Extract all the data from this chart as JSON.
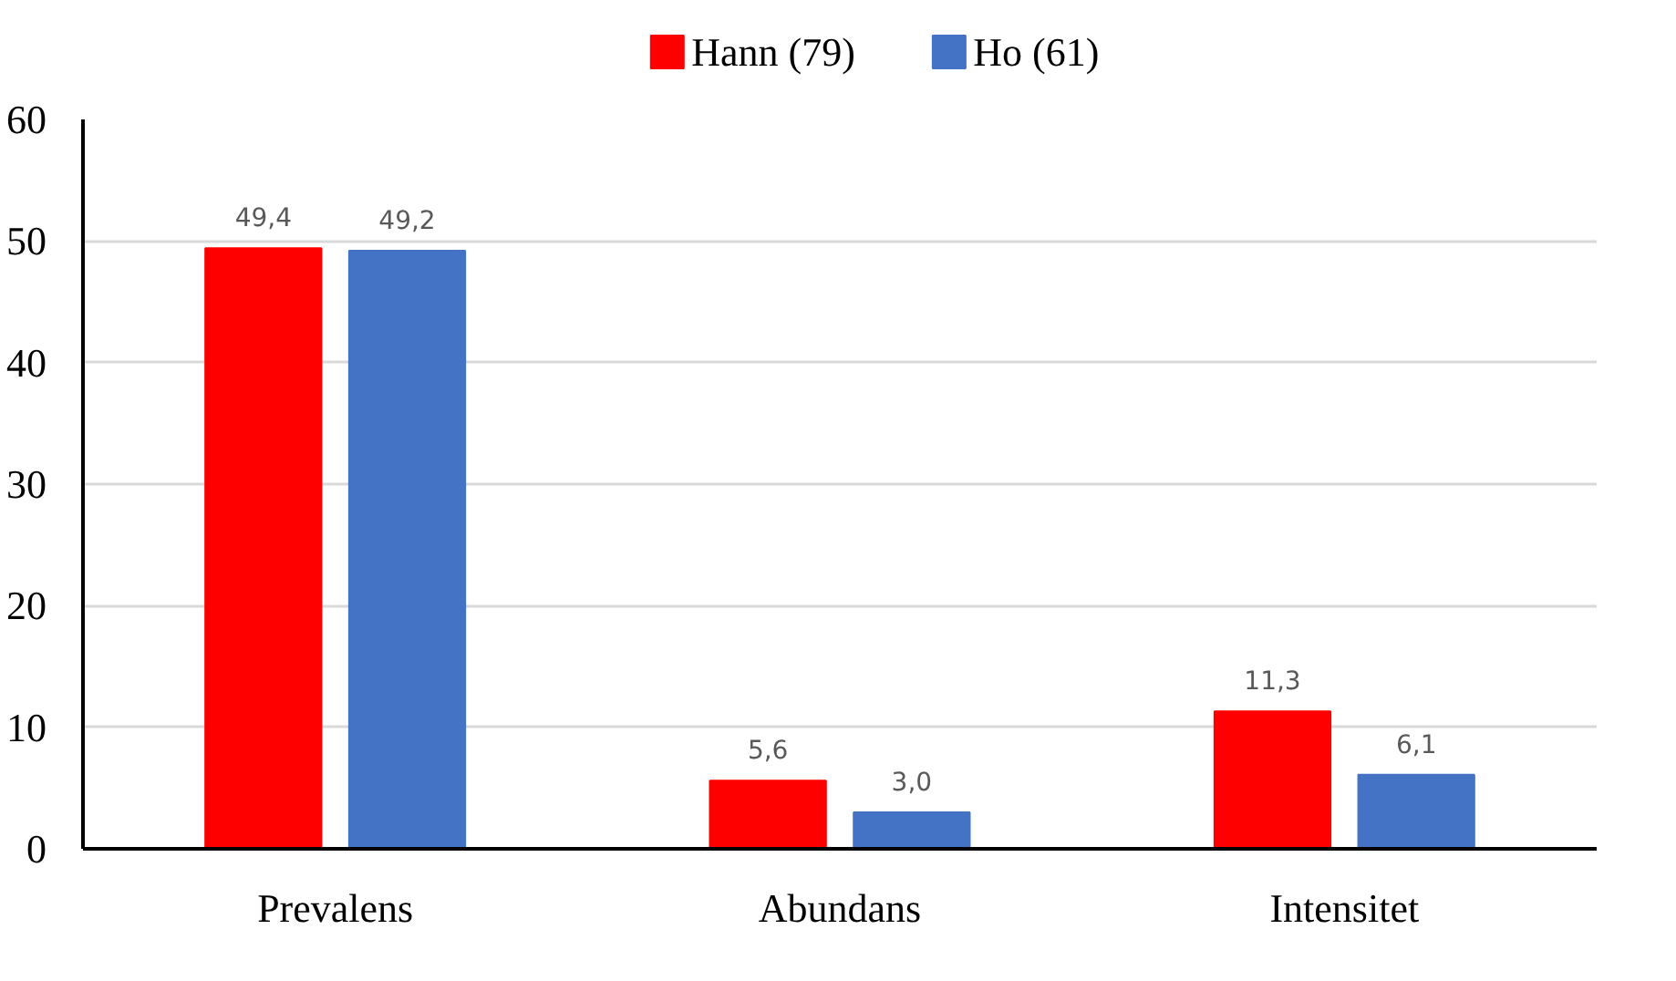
{
  "chart_data": {
    "type": "bar",
    "categories": [
      "Prevalens",
      "Abundans",
      "Intensitet"
    ],
    "series": [
      {
        "name": "Hann (79)",
        "color": "#ff0000",
        "values": [
          49.4,
          5.6,
          11.3
        ],
        "value_labels": [
          "49,4",
          "5,6",
          "11,3"
        ]
      },
      {
        "name": "Ho (61)",
        "color": "#4472c4",
        "values": [
          49.2,
          3.0,
          6.1
        ],
        "value_labels": [
          "49,2",
          "3,0",
          "6,1"
        ]
      }
    ],
    "ylim": [
      0,
      60
    ],
    "yticks": [
      0,
      10,
      20,
      30,
      40,
      50,
      60
    ],
    "grid": "y",
    "legend": "top"
  }
}
